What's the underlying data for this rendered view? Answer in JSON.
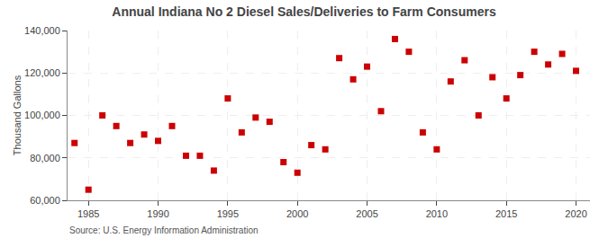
{
  "chart_data": {
    "type": "scatter",
    "title": "Annual Indiana No 2 Diesel Sales/Deliveries to Farm Consumers",
    "ylabel": "Thousand Gallons",
    "annotations": [
      "Source: U.S. Energy Information Administration"
    ],
    "x": [
      1984,
      1985,
      1986,
      1987,
      1988,
      1989,
      1990,
      1991,
      1992,
      1993,
      1994,
      1995,
      1996,
      1997,
      1998,
      1999,
      2000,
      2001,
      2002,
      2003,
      2004,
      2005,
      2006,
      2007,
      2008,
      2009,
      2010,
      2011,
      2012,
      2013,
      2014,
      2015,
      2016,
      2017,
      2018,
      2019,
      2020
    ],
    "values": [
      87000,
      65000,
      100000,
      95000,
      87000,
      91000,
      88000,
      95000,
      81000,
      81000,
      74000,
      108000,
      92000,
      99000,
      97000,
      78000,
      73000,
      86000,
      84000,
      127000,
      117000,
      123000,
      102000,
      136000,
      130000,
      92000,
      84000,
      116000,
      126000,
      100000,
      118000,
      108000,
      119000,
      130000,
      124000,
      129000,
      121000
    ],
    "color": "#cc0000",
    "marker": "square",
    "xlim": [
      1983.5,
      2021
    ],
    "xticks": [
      1985,
      1990,
      1995,
      2000,
      2005,
      2010,
      2015,
      2020
    ],
    "ylim": [
      60000,
      140000
    ],
    "yticks": [
      {
        "value": 60000,
        "label": "60,000"
      },
      {
        "value": 80000,
        "label": "80,000"
      },
      {
        "value": 100000,
        "label": "100,000"
      },
      {
        "value": 120000,
        "label": "120,000"
      },
      {
        "value": 140000,
        "label": "140,000"
      }
    ],
    "grid": true
  }
}
